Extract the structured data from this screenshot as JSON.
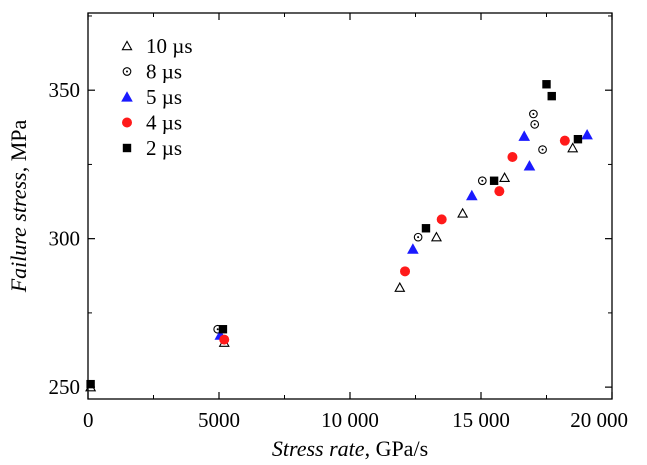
{
  "chart_data": {
    "type": "scatter",
    "xlim": [
      0,
      20000
    ],
    "ylim": [
      246,
      376
    ],
    "x_ticks": [
      0,
      5000,
      10000,
      15000,
      20000
    ],
    "x_tick_labels": [
      "0",
      "5000",
      "10 000",
      "15 000",
      "20 000"
    ],
    "y_ticks": [
      250,
      300,
      350
    ],
    "y_tick_labels": [
      "250",
      "300",
      "350"
    ],
    "xlabel_italic": "Stress rate",
    "xlabel_unit": ", GPa/s",
    "ylabel_italic": "Failure stress",
    "ylabel_unit": ", MPa",
    "legend_position": "top-left",
    "grid": false,
    "series": [
      {
        "name": "10 µs",
        "marker": "open-triangle",
        "color": "#000000",
        "points": [
          [
            100,
            250
          ],
          [
            5200,
            265
          ],
          [
            11900,
            283.5
          ],
          [
            13300,
            300.5
          ],
          [
            14300,
            308.5
          ],
          [
            15900,
            320.5
          ],
          [
            18500,
            330.5
          ]
        ]
      },
      {
        "name": "8 µs",
        "marker": "open-circle-dot",
        "color": "#000000",
        "points": [
          [
            4950,
            269.5
          ],
          [
            12600,
            300.5
          ],
          [
            15050,
            319.5
          ],
          [
            17000,
            342
          ],
          [
            17050,
            338.5
          ],
          [
            17350,
            330
          ]
        ]
      },
      {
        "name": "5 µs",
        "marker": "filled-triangle",
        "color": "#1a1aff",
        "points": [
          [
            5050,
            267.5
          ],
          [
            12400,
            296.5
          ],
          [
            14650,
            314.5
          ],
          [
            16650,
            334.5
          ],
          [
            16850,
            324.5
          ],
          [
            19050,
            335
          ]
        ]
      },
      {
        "name": "4 µs",
        "marker": "filled-circle",
        "color": "#ff1a1a",
        "points": [
          [
            5200,
            266
          ],
          [
            12100,
            289
          ],
          [
            13500,
            306.5
          ],
          [
            15700,
            316
          ],
          [
            16200,
            327.5
          ],
          [
            18200,
            333
          ]
        ]
      },
      {
        "name": "2 µs",
        "marker": "filled-square",
        "color": "#000000",
        "points": [
          [
            100,
            251
          ],
          [
            5150,
            269.5
          ],
          [
            12900,
            303.5
          ],
          [
            15500,
            319.5
          ],
          [
            17500,
            352
          ],
          [
            17700,
            348
          ],
          [
            18700,
            333.5
          ]
        ]
      }
    ]
  }
}
